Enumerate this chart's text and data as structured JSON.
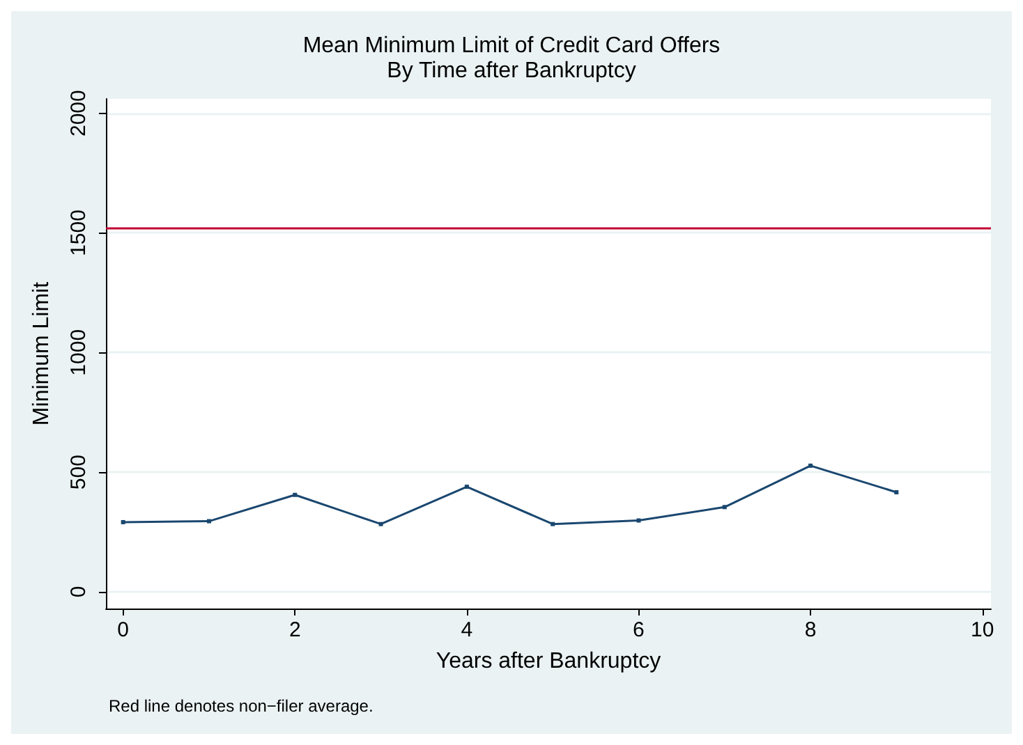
{
  "chart_data": {
    "type": "line",
    "title": "Mean Minimum Limit of Credit Card Offers",
    "subtitle": "By Time after Bankruptcy",
    "xlabel": "Years after Bankruptcy",
    "ylabel": "Minimum Limit",
    "x": [
      0,
      1,
      2,
      3,
      4,
      5,
      6,
      7,
      8,
      9
    ],
    "series": [
      {
        "color": "#1a476f",
        "values": [
          291,
          295,
          405,
          283,
          439,
          283,
          298,
          354,
          527,
          416
        ]
      }
    ],
    "xlim": [
      -0.2,
      10.1
    ],
    "xticks": [
      0,
      2,
      4,
      6,
      8,
      10
    ],
    "ylim": [
      -70,
      2060
    ],
    "yticks": [
      0,
      500,
      1000,
      1500,
      2000
    ],
    "ref_lines": [
      {
        "axis": "y",
        "value": 1521,
        "color": "#c10534"
      }
    ],
    "annotations": [
      "Red line denotes non−filer average."
    ],
    "grid": "y",
    "marker": "square",
    "line_style": "solid"
  }
}
